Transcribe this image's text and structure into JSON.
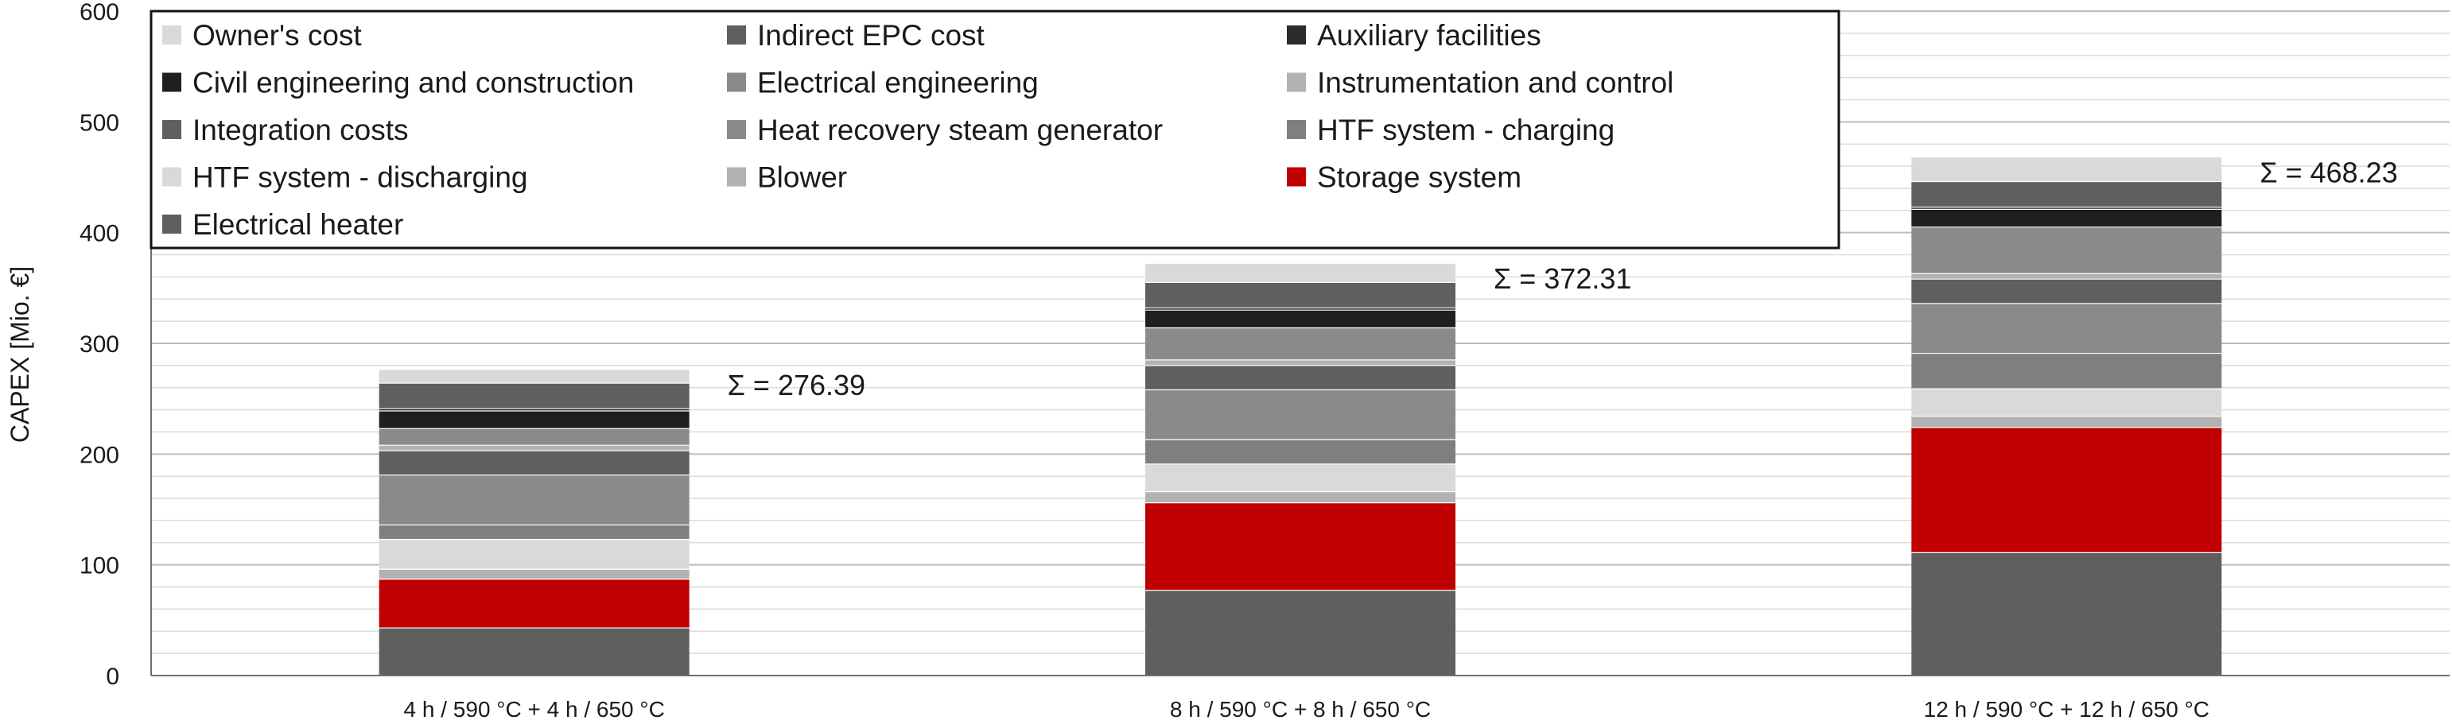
{
  "chart_data": {
    "type": "bar",
    "stacked": true,
    "title": "",
    "xlabel": "",
    "ylabel": "CAPEX [Mio. €]",
    "ylim": [
      0,
      600
    ],
    "yticks": [
      0,
      100,
      200,
      300,
      400,
      500,
      600
    ],
    "minor_grid_step": 20,
    "grid": true,
    "legend_position": "top-left",
    "categories": [
      "4 h / 590 °C + 4 h / 650 °C",
      "8 h / 590 °C + 8 h / 650 °C",
      "12 h / 590 °C + 12 h / 650 °C"
    ],
    "totals": [
      "Σ = 276.39",
      "Σ = 372.31",
      "Σ = 468.23"
    ],
    "series": [
      {
        "name": "Electrical heater",
        "color": "#5f5f5f",
        "values": [
          43,
          77,
          111
        ]
      },
      {
        "name": "Storage system",
        "color": "#c00000",
        "values": [
          44,
          79,
          113
        ]
      },
      {
        "name": "Blower",
        "color": "#b2b2b2",
        "values": [
          9,
          10,
          10
        ]
      },
      {
        "name": "HTF system - discharging",
        "color": "#d9d9d9",
        "values": [
          27,
          25,
          25
        ]
      },
      {
        "name": "HTF system - charging",
        "color": "#7f7f7f",
        "values": [
          13,
          22,
          32
        ]
      },
      {
        "name": "Heat recovery steam generator",
        "color": "#8a8a8a",
        "values": [
          45,
          45,
          45
        ]
      },
      {
        "name": "Integration costs",
        "color": "#5f5f5f",
        "values": [
          22,
          22,
          22
        ]
      },
      {
        "name": "Instrumentation and control",
        "color": "#b2b2b2",
        "values": [
          5,
          5,
          5
        ]
      },
      {
        "name": "Electrical engineering",
        "color": "#8a8a8a",
        "values": [
          15,
          29,
          42
        ]
      },
      {
        "name": "Civil engineering and construction",
        "color": "#1f1f1f",
        "values": [
          16,
          16,
          16
        ]
      },
      {
        "name": "Auxiliary facilities",
        "color": "#2b2b2b",
        "values": [
          2,
          2,
          2
        ]
      },
      {
        "name": "Indirect EPC cost",
        "color": "#5f5f5f",
        "values": [
          23,
          23,
          23
        ]
      },
      {
        "name": "Owner's cost",
        "color": "#d9d9d9",
        "values": [
          12.39,
          17.31,
          22.23
        ]
      }
    ],
    "legend_order": [
      "Owner's cost",
      "Indirect EPC cost",
      "Auxiliary facilities",
      "Civil engineering and construction",
      "Electrical engineering",
      "Instrumentation and control",
      "Integration costs",
      "Heat recovery steam generator",
      "HTF system - charging",
      "HTF system - discharging",
      "Blower",
      "Storage system",
      "Electrical heater"
    ]
  }
}
